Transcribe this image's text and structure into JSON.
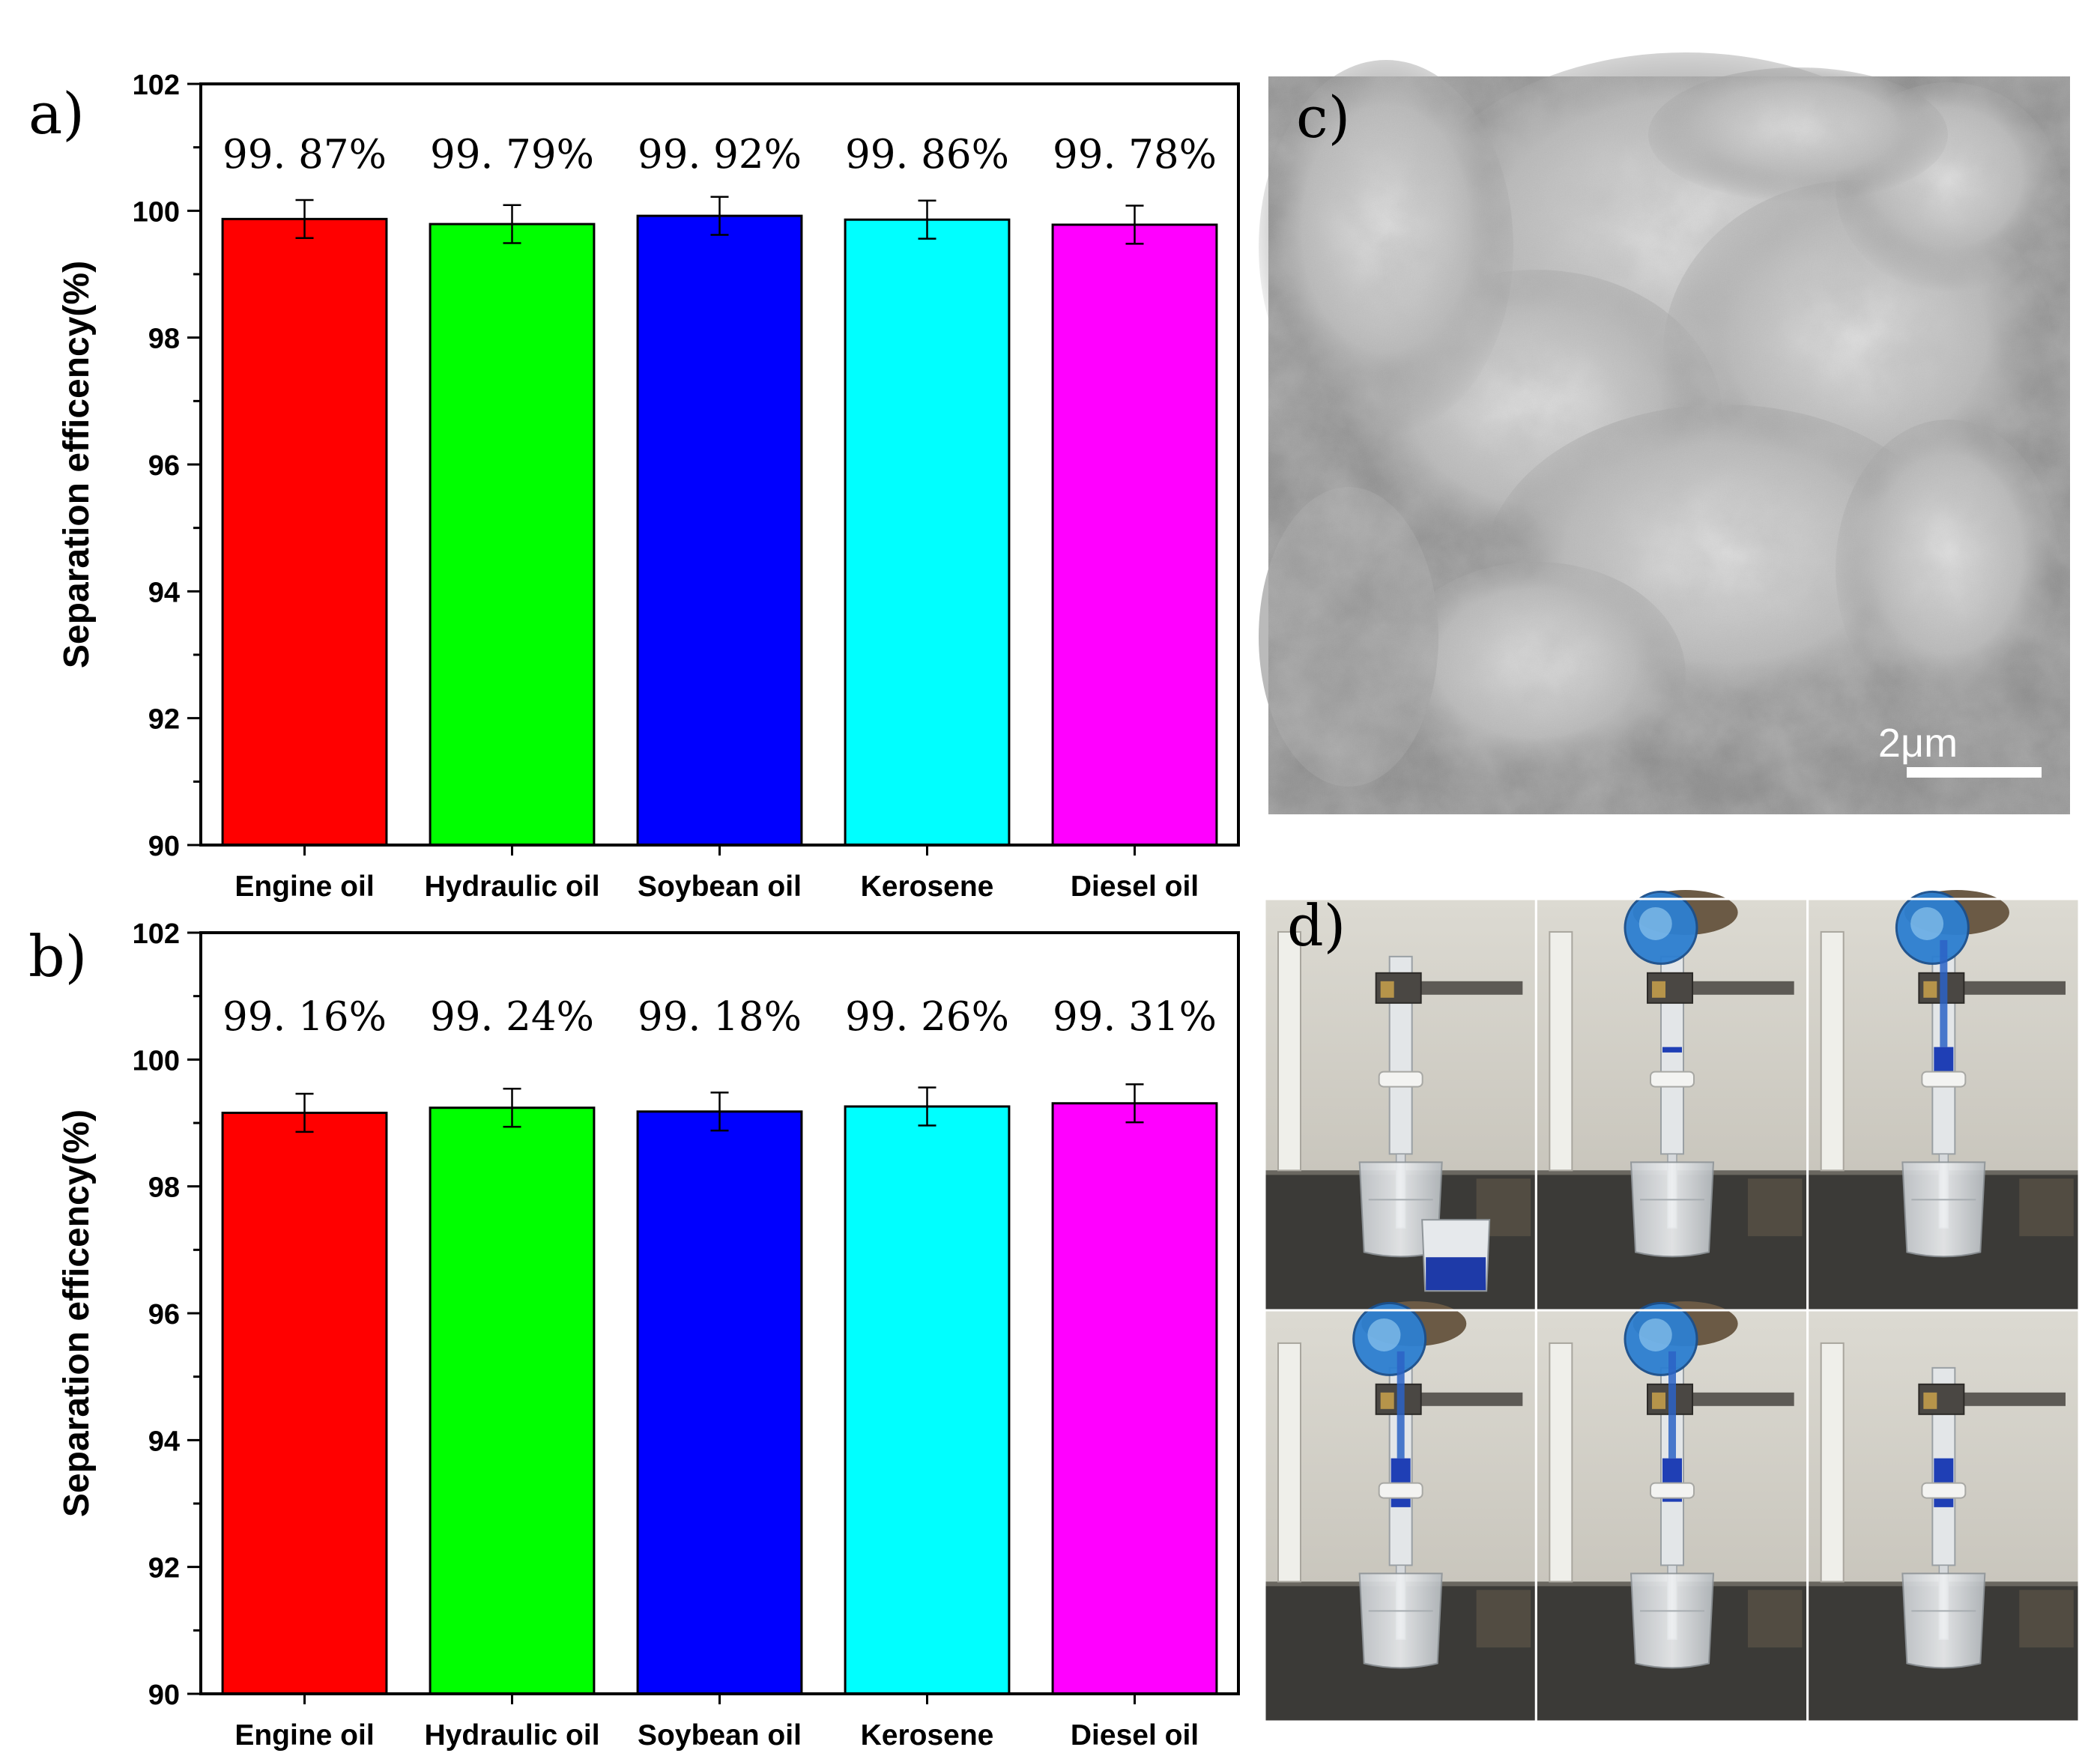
{
  "chart_data": [
    {
      "panel": "a)",
      "type": "bar",
      "categories": [
        "Engine oil",
        "Hydraulic oil",
        "Soybean oil",
        "Kerosene",
        "Diesel oil"
      ],
      "values": [
        99.87,
        99.79,
        99.92,
        99.86,
        99.78
      ],
      "errors": [
        0.3,
        0.3,
        0.3,
        0.3,
        0.3
      ],
      "data_labels": [
        "99. 87%",
        "99. 79%",
        "99. 92%",
        "99. 86%",
        "99. 78%"
      ],
      "colors": [
        "#ff0000",
        "#00ff00",
        "#0000ff",
        "#00ffff",
        "#ff00ff"
      ],
      "ylabel": "Separation efficency(%)",
      "xlabel": "",
      "ylim": [
        90,
        102
      ],
      "yticks": [
        90,
        92,
        94,
        96,
        98,
        100,
        102
      ]
    },
    {
      "panel": "b)",
      "type": "bar",
      "categories": [
        "Engine oil",
        "Hydraulic oil",
        "Soybean oil",
        "Kerosene",
        "Diesel oil"
      ],
      "values": [
        99.16,
        99.24,
        99.18,
        99.26,
        99.31
      ],
      "errors": [
        0.3,
        0.3,
        0.3,
        0.3,
        0.3
      ],
      "data_labels": [
        "99. 16%",
        "99. 24%",
        "99. 18%",
        "99. 26%",
        "99. 31%"
      ],
      "colors": [
        "#ff0000",
        "#00ff00",
        "#0000ff",
        "#00ffff",
        "#ff00ff"
      ],
      "ylabel": "Separation efficency(%)",
      "xlabel": "",
      "ylim": [
        90,
        102
      ],
      "yticks": [
        90,
        92,
        94,
        96,
        98,
        100,
        102
      ]
    }
  ],
  "sem_panel": {
    "letter": "c)",
    "scale_bar": "2μm"
  },
  "photo_panel": {
    "letter": "d)"
  }
}
